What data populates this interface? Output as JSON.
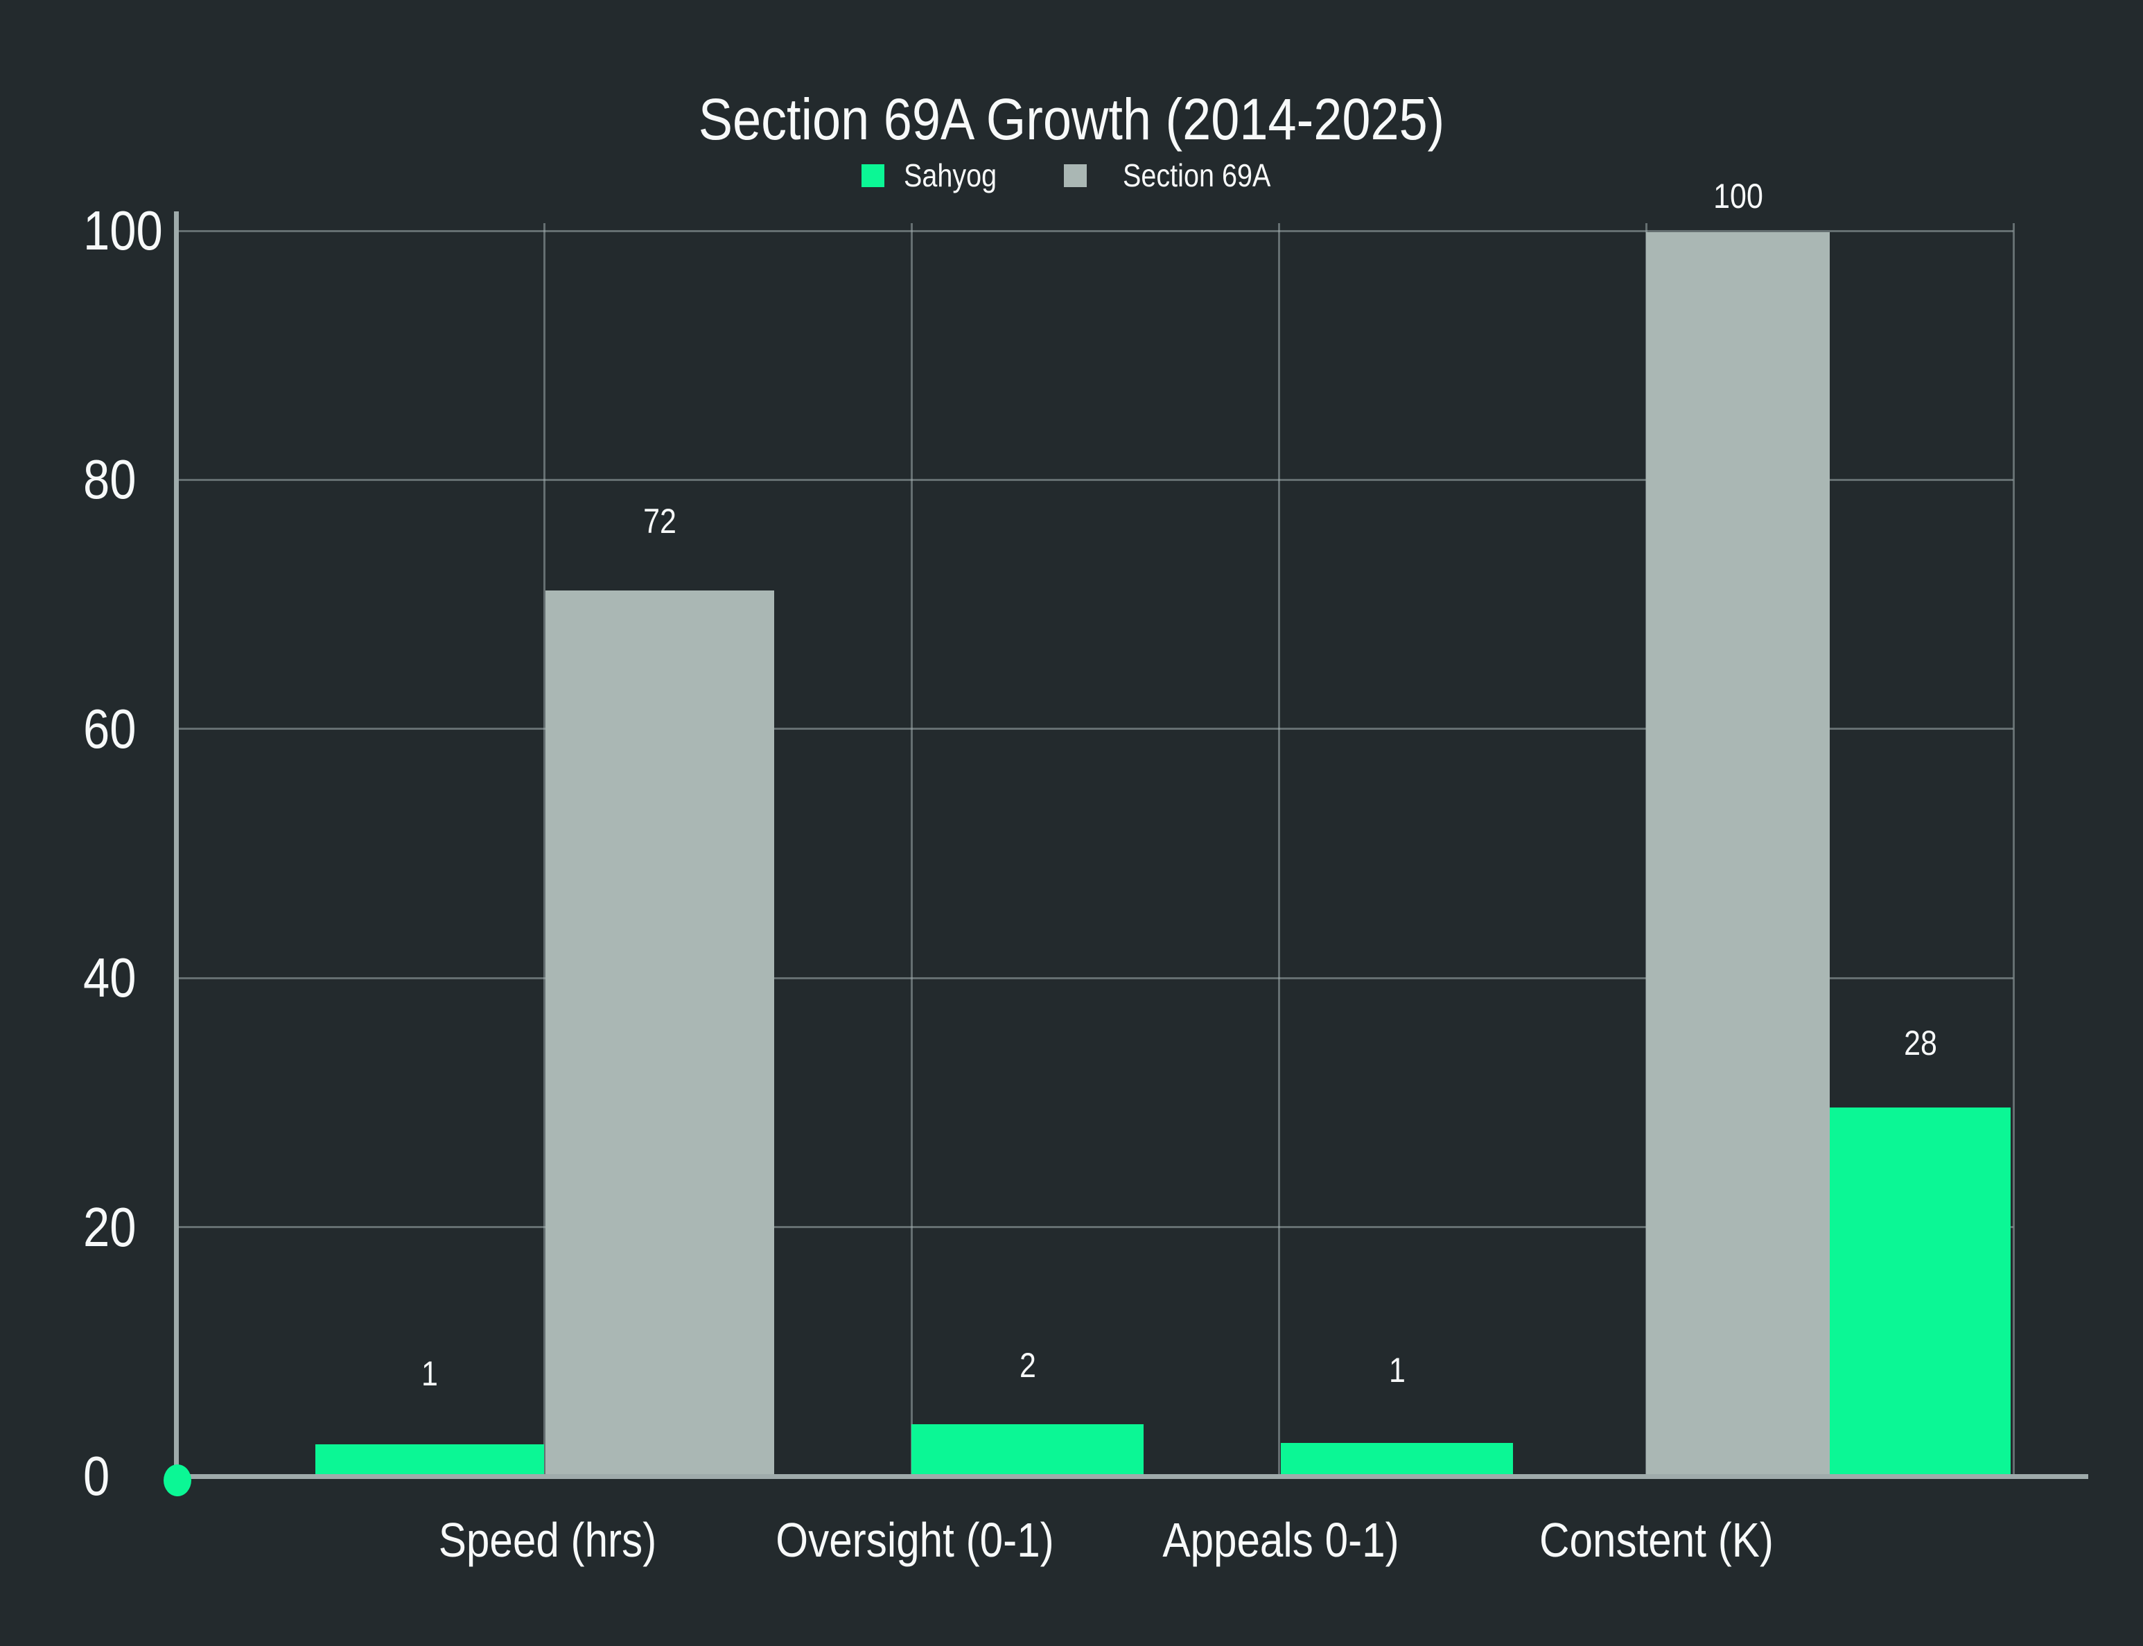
{
  "title": "Section 69A Growth (2014-2025)",
  "legend": {
    "position": "top",
    "items": [
      {
        "label": "Sahyog",
        "color": "#0BF795"
      },
      {
        "label": "Section 69A",
        "color": "#AAB7B4"
      }
    ]
  },
  "chart_data": {
    "type": "bar",
    "title": "Section 69A Growth (2014-2025)",
    "categories": [
      "Speed (hrs)",
      "Oversight (0-1)",
      "Appeals 0-1)",
      "Constent (K)"
    ],
    "series": [
      {
        "name": "Sahyog",
        "color": "#0BF795",
        "values": [
          1,
          2,
          1,
          28
        ]
      },
      {
        "name": "Section 69A",
        "color": "#AAB7B4",
        "values": [
          72,
          null,
          null,
          100
        ]
      }
    ],
    "xlabel": "",
    "ylabel": "",
    "ylim": [
      0,
      100
    ],
    "yticks": [
      0,
      20,
      40,
      60,
      80,
      100
    ],
    "grid": true,
    "legend_position": "top-center",
    "bar_value_labels": [
      1,
      72,
      2,
      1,
      100,
      28
    ],
    "annotations": {
      "origin_marker": "green-dot-at-zero"
    }
  },
  "colors": {
    "background": "#232A2D",
    "axis": "#9FABAB",
    "grid": "rgba(167,180,181,0.5)",
    "text": "#F7F9F9",
    "sahyog": "#0BF795",
    "section69a": "#AAB7B4"
  }
}
